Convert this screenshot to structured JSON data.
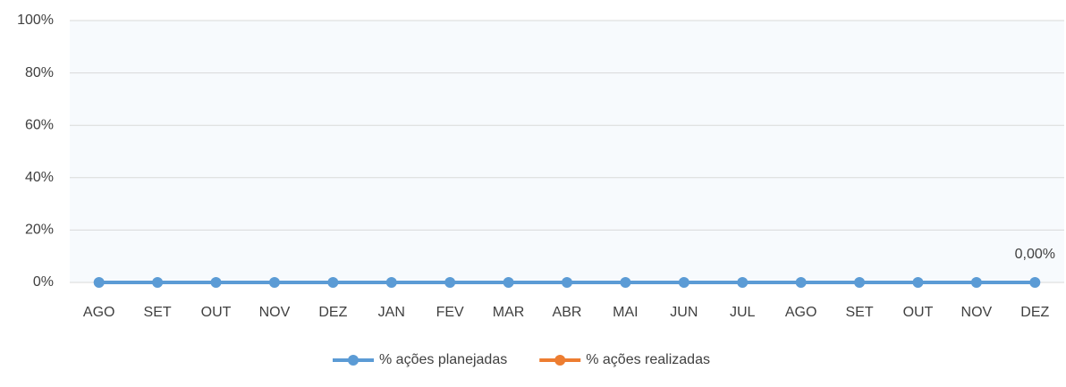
{
  "chart_data": {
    "type": "line",
    "categories": [
      "AGO",
      "SET",
      "OUT",
      "NOV",
      "DEZ",
      "JAN",
      "FEV",
      "MAR",
      "ABR",
      "MAI",
      "JUN",
      "JUL",
      "AGO",
      "SET",
      "OUT",
      "NOV",
      "DEZ"
    ],
    "series": [
      {
        "name": "% ações planejadas",
        "color": "#5b9bd5",
        "values": [
          0,
          0,
          0,
          0,
          0,
          0,
          0,
          0,
          0,
          0,
          0,
          0,
          0,
          0,
          0,
          0,
          0
        ],
        "value_labels": [
          null,
          null,
          null,
          null,
          null,
          null,
          null,
          null,
          null,
          null,
          null,
          null,
          null,
          null,
          null,
          null,
          "0,00%"
        ]
      },
      {
        "name": "% ações realizadas",
        "color": "#ed7d31",
        "values": [
          null,
          null,
          null,
          null,
          null,
          null,
          null,
          null,
          null,
          null,
          null,
          null,
          null,
          null,
          null,
          null,
          null
        ]
      }
    ],
    "ylim": [
      0,
      100
    ],
    "yticks": [
      {
        "value": 0,
        "label": "0%"
      },
      {
        "value": 20,
        "label": "20%"
      },
      {
        "value": 40,
        "label": "40%"
      },
      {
        "value": 60,
        "label": "60%"
      },
      {
        "value": 80,
        "label": "80%"
      },
      {
        "value": 100,
        "label": "100%"
      }
    ],
    "grid": true,
    "legend": "bottom"
  }
}
